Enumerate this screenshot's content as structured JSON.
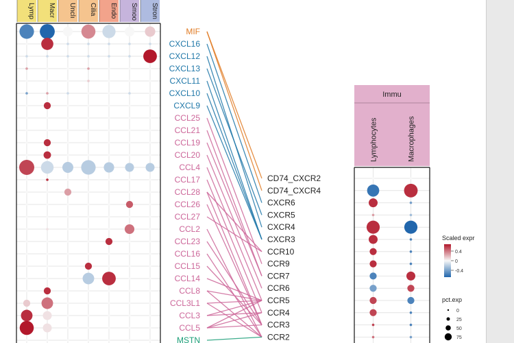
{
  "colors": {
    "chemokine_cxc": "#1f77a8",
    "chemokine_cc": "#cc6699",
    "mif": "#e07b24",
    "mstn": "#1a9e77",
    "high": "#b2182b",
    "low": "#2166ac",
    "mid": "#f7f7f7",
    "immune_strip": "#e2b0cc"
  },
  "chart_data": [
    {
      "type": "dotplot",
      "name_role": "ligand expression dot plot",
      "columns": [
        "Lymp",
        "Macr",
        "Unclı",
        "Cilia",
        "Endo",
        "Smoo",
        "Stron"
      ],
      "column_colors": [
        "#f2e07a",
        "#f2e07a",
        "#f5c48e",
        "#f5c48e",
        "#f2a38b",
        "#c6b4dc",
        "#aebbe0"
      ],
      "rows": [
        "MIF",
        "CXCL16",
        "CXCL12",
        "CXCL13",
        "CXCL11",
        "CXCL10",
        "CXCL9",
        "CCL25",
        "CCL21",
        "CCL19",
        "CCL20",
        "CCL4",
        "CCL17",
        "CCL28",
        "CCL26",
        "CCL27",
        "CCL2",
        "CCL23",
        "CCL16",
        "CCL15",
        "CCL14",
        "CCL8",
        "CCL3L1",
        "CCL3",
        "CCL5",
        "MSTN"
      ],
      "row_colors": [
        "#e07b24",
        "#1f77a8",
        "#1f77a8",
        "#1f77a8",
        "#1f77a8",
        "#1f77a8",
        "#1f77a8",
        "#cc6699",
        "#cc6699",
        "#cc6699",
        "#cc6699",
        "#cc6699",
        "#cc6699",
        "#cc6699",
        "#cc6699",
        "#cc6699",
        "#cc6699",
        "#cc6699",
        "#cc6699",
        "#cc6699",
        "#cc6699",
        "#cc6699",
        "#cc6699",
        "#cc6699",
        "#cc6699",
        "#1a9e77"
      ],
      "pct": [
        [
          70,
          75,
          25,
          65,
          55,
          25,
          30
        ],
        [
          5,
          45,
          5,
          5,
          5,
          5,
          5
        ],
        [
          5,
          5,
          5,
          5,
          5,
          5,
          60
        ],
        [
          3,
          3,
          3,
          5,
          3,
          3,
          3
        ],
        [
          3,
          3,
          3,
          5,
          3,
          3,
          3
        ],
        [
          3,
          3,
          3,
          3,
          3,
          3,
          3
        ],
        [
          3,
          10,
          3,
          3,
          3,
          3,
          3
        ],
        [
          3,
          3,
          3,
          3,
          3,
          3,
          3
        ],
        [
          3,
          3,
          3,
          3,
          3,
          3,
          3
        ],
        [
          3,
          10,
          3,
          3,
          3,
          3,
          3
        ],
        [
          3,
          12,
          3,
          3,
          3,
          3,
          3
        ],
        [
          80,
          50,
          35,
          70,
          30,
          20,
          20
        ],
        [
          3,
          3,
          3,
          3,
          3,
          3,
          3
        ],
        [
          3,
          3,
          10,
          3,
          3,
          3,
          3
        ],
        [
          3,
          3,
          3,
          3,
          3,
          10,
          3
        ],
        [
          3,
          3,
          3,
          3,
          3,
          3,
          3
        ],
        [
          3,
          3,
          3,
          3,
          3,
          25,
          3
        ],
        [
          3,
          3,
          3,
          3,
          10,
          3,
          3
        ],
        [
          3,
          3,
          3,
          3,
          3,
          3,
          3
        ],
        [
          3,
          3,
          3,
          10,
          3,
          3,
          3
        ],
        [
          3,
          3,
          3,
          40,
          60,
          3,
          3
        ],
        [
          3,
          10,
          3,
          3,
          3,
          3,
          3
        ],
        [
          10,
          40,
          3,
          3,
          3,
          3,
          3
        ],
        [
          40,
          20,
          3,
          3,
          3,
          3,
          3
        ],
        [
          65,
          20,
          3,
          3,
          3,
          3,
          3
        ],
        [
          3,
          3,
          3,
          3,
          3,
          3,
          3
        ]
      ],
      "expr": [
        [
          -0.4,
          -0.5,
          0.0,
          0.25,
          -0.1,
          0.0,
          0.1
        ],
        [
          0.0,
          0.45,
          -0.1,
          -0.1,
          -0.1,
          -0.1,
          -0.1
        ],
        [
          -0.1,
          -0.1,
          -0.1,
          -0.1,
          -0.1,
          -0.1,
          0.5
        ],
        [
          0.2,
          0.0,
          0.0,
          0.2,
          0.0,
          0.0,
          0.0
        ],
        [
          0.0,
          0.0,
          0.0,
          0.1,
          0.0,
          0.0,
          0.0
        ],
        [
          -0.3,
          0.2,
          -0.1,
          0.0,
          0.0,
          -0.1,
          0.0
        ],
        [
          0.0,
          0.45,
          0.0,
          0.0,
          0.0,
          0.0,
          0.0
        ],
        [
          0.0,
          0.0,
          0.0,
          0.0,
          0.0,
          0.0,
          0.0
        ],
        [
          0.0,
          0.0,
          0.0,
          0.0,
          0.0,
          0.0,
          0.0
        ],
        [
          0.0,
          0.45,
          0.0,
          0.0,
          0.0,
          0.0,
          0.0
        ],
        [
          0.0,
          0.45,
          0.0,
          0.0,
          0.0,
          0.0,
          0.0
        ],
        [
          0.4,
          -0.1,
          -0.15,
          -0.15,
          -0.15,
          -0.15,
          -0.15
        ],
        [
          0.0,
          0.45,
          0.0,
          0.0,
          0.0,
          0.0,
          0.0
        ],
        [
          0.0,
          0.0,
          0.2,
          0.0,
          0.0,
          0.0,
          0.0
        ],
        [
          0.0,
          0.0,
          0.0,
          0.0,
          0.0,
          0.35,
          0.0
        ],
        [
          0.0,
          0.0,
          0.0,
          0.0,
          0.0,
          0.0,
          0.0
        ],
        [
          0.0,
          0.05,
          0.0,
          0.0,
          0.0,
          0.3,
          0.0
        ],
        [
          0.0,
          0.0,
          0.0,
          0.0,
          0.45,
          0.0,
          0.0
        ],
        [
          0.0,
          0.0,
          0.0,
          0.0,
          0.0,
          0.0,
          0.0
        ],
        [
          0.0,
          0.0,
          0.0,
          0.45,
          0.0,
          0.0,
          0.0
        ],
        [
          0.0,
          0.0,
          0.0,
          -0.15,
          0.45,
          0.0,
          0.0
        ],
        [
          0.0,
          0.45,
          0.0,
          0.0,
          0.0,
          0.0,
          0.0
        ],
        [
          0.1,
          0.3,
          0.0,
          0.0,
          0.0,
          0.0,
          0.0
        ],
        [
          0.45,
          0.05,
          0.0,
          0.0,
          0.0,
          0.0,
          0.0
        ],
        [
          0.5,
          0.05,
          0.0,
          0.0,
          0.0,
          0.0,
          0.0
        ],
        [
          0.0,
          0.0,
          0.0,
          0.0,
          0.0,
          0.0,
          0.0
        ]
      ]
    },
    {
      "type": "dotplot",
      "name_role": "receptor expression dot plot",
      "group": "Immu",
      "columns": [
        "Lymphocytes",
        "Macrophages"
      ],
      "rows": [
        "CD74_CXCR2",
        "CD74_CXCR4",
        "CXCR6",
        "CXCR5",
        "CXCR4",
        "CXCR3",
        "CCR10",
        "CCR9",
        "CCR7",
        "CCR6",
        "CCR5",
        "CCR4",
        "CCR3",
        "CCR2"
      ],
      "pct": [
        [
          3,
          3
        ],
        [
          45,
          60
        ],
        [
          20,
          5
        ],
        [
          5,
          5
        ],
        [
          55,
          55
        ],
        [
          20,
          3
        ],
        [
          10,
          3
        ],
        [
          10,
          3
        ],
        [
          10,
          20
        ],
        [
          10,
          10
        ],
        [
          10,
          10
        ],
        [
          10,
          5
        ],
        [
          5,
          5
        ],
        [
          5,
          5
        ]
      ],
      "expr": [
        [
          0.0,
          0.0
        ],
        [
          -0.45,
          0.45
        ],
        [
          0.45,
          -0.3
        ],
        [
          0.2,
          -0.2
        ],
        [
          0.45,
          -0.5
        ],
        [
          0.45,
          -0.4
        ],
        [
          0.45,
          -0.4
        ],
        [
          0.45,
          -0.4
        ],
        [
          -0.4,
          0.45
        ],
        [
          -0.3,
          0.4
        ],
        [
          0.4,
          -0.4
        ],
        [
          0.4,
          -0.4
        ],
        [
          0.4,
          -0.4
        ],
        [
          0.3,
          -0.3
        ]
      ]
    },
    {
      "type": "network",
      "name_role": "ligand-receptor links",
      "links": [
        [
          "MIF",
          "CD74_CXCR2",
          "#e07b24"
        ],
        [
          "MIF",
          "CD74_CXCR4",
          "#e07b24"
        ],
        [
          "CXCL16",
          "CXCR6",
          "#1f77a8"
        ],
        [
          "CXCL12",
          "CXCR4",
          "#1f77a8"
        ],
        [
          "CXCL13",
          "CXCR5",
          "#1f77a8"
        ],
        [
          "CXCL11",
          "CXCR3",
          "#1f77a8"
        ],
        [
          "CXCL10",
          "CXCR3",
          "#1f77a8"
        ],
        [
          "CXCL9",
          "CXCR3",
          "#1f77a8"
        ],
        [
          "CCL25",
          "CCR9",
          "#cc6699"
        ],
        [
          "CCL21",
          "CCR7",
          "#cc6699"
        ],
        [
          "CCL19",
          "CCR7",
          "#cc6699"
        ],
        [
          "CCL20",
          "CCR6",
          "#cc6699"
        ],
        [
          "CCL4",
          "CCR5",
          "#cc6699"
        ],
        [
          "CCL17",
          "CCR4",
          "#cc6699"
        ],
        [
          "CCL28",
          "CCR10",
          "#cc6699"
        ],
        [
          "CCL28",
          "CCR3",
          "#cc6699"
        ],
        [
          "CCL26",
          "CCR3",
          "#cc6699"
        ],
        [
          "CCL27",
          "CCR10",
          "#cc6699"
        ],
        [
          "CCL2",
          "CCR2",
          "#cc6699"
        ],
        [
          "CCL23",
          "CCR3",
          "#cc6699"
        ],
        [
          "CCL16",
          "CCR2",
          "#cc6699"
        ],
        [
          "CCL15",
          "CCR3",
          "#cc6699"
        ],
        [
          "CCL14",
          "CCR5",
          "#cc6699"
        ],
        [
          "CCL8",
          "CCR2",
          "#cc6699"
        ],
        [
          "CCL8",
          "CCR5",
          "#cc6699"
        ],
        [
          "CCL3L1",
          "CCR5",
          "#cc6699"
        ],
        [
          "CCL3L1",
          "CCR2",
          "#cc6699"
        ],
        [
          "CCL3",
          "CCR5",
          "#cc6699"
        ],
        [
          "CCL3",
          "CCR4",
          "#cc6699"
        ],
        [
          "CCL5",
          "CCR5",
          "#cc6699"
        ],
        [
          "CCL5",
          "CCR3",
          "#cc6699"
        ],
        [
          "CCL5",
          "CCR4",
          "#cc6699"
        ],
        [
          "MSTN",
          "CCR2",
          "#1a9e77"
        ]
      ]
    }
  ],
  "legend": {
    "expr_title": "Scaled expr",
    "expr_ticks": [
      "0.4",
      "0",
      "-0.4"
    ],
    "pct_title": "pct.exp",
    "pct_ticks": [
      "0",
      "25",
      "50",
      "75"
    ]
  }
}
